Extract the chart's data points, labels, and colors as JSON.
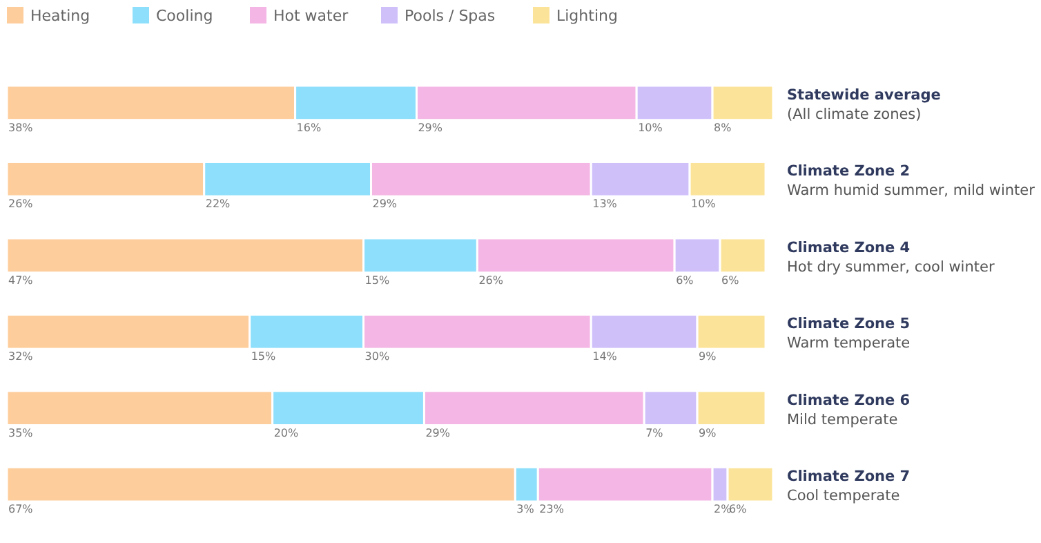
{
  "chart_data": {
    "type": "bar",
    "orientation": "horizontal",
    "stacked": true,
    "legend": "top left",
    "categories": [
      "Statewide average\n(All climate zones)",
      "Climate Zone 2\nWarm humid summer, mild winter",
      "Climate Zone 4\nHot dry summer, cool winter",
      "Climate Zone 5\nWarm temperate",
      "Climate Zone 6\nMild temperate",
      "Climate Zone 7\nCool temperate"
    ],
    "series": [
      {
        "name": "Heating",
        "color": "#fecd9c",
        "values": [
          38,
          26,
          47,
          32,
          35,
          67
        ],
        "value_labels": [
          "38%",
          "26%",
          "47%",
          "32%",
          "35%",
          "67%"
        ]
      },
      {
        "name": "Cooling",
        "color": "#8ddffb",
        "values": [
          16,
          22,
          15,
          15,
          20,
          3
        ],
        "value_labels": [
          "16%",
          "22%",
          "15%",
          "15%",
          "20%",
          "3%"
        ]
      },
      {
        "name": "Hot water",
        "color": "#f4b6e4",
        "values": [
          29,
          29,
          26,
          30,
          29,
          23
        ],
        "value_labels": [
          "29%",
          "29%",
          "26%",
          "30%",
          "29%",
          "23%"
        ]
      },
      {
        "name": "Pools / Spas",
        "color": "#cfc0fa",
        "values": [
          10,
          13,
          6,
          14,
          7,
          2
        ],
        "value_labels": [
          "10%",
          "13%",
          "6%",
          "14%",
          "7%",
          "2%"
        ]
      },
      {
        "name": "Lighting",
        "color": "#fbe49a",
        "values": [
          8,
          10,
          6,
          9,
          9,
          6
        ],
        "value_labels": [
          "8%",
          "10%",
          "6%",
          "9%",
          "9%",
          "6%"
        ]
      }
    ]
  }
}
